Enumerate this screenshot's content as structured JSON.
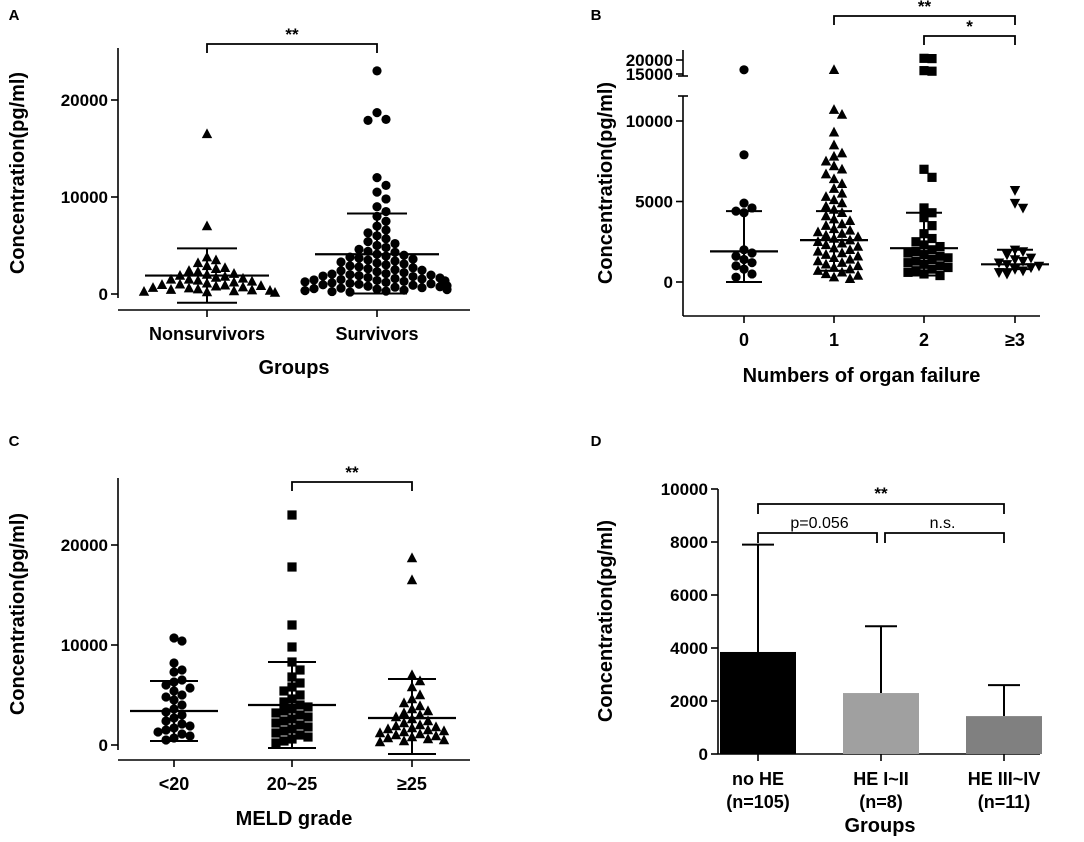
{
  "chart_data": [
    {
      "panel": "A",
      "type": "scatter",
      "xlabel": "Groups",
      "ylabel": "Concentration(pg/ml)",
      "ylim": [
        -1500,
        25000
      ],
      "yticks": [
        0,
        10000,
        20000
      ],
      "categories": [
        "Nonsurvivors",
        "Survivors"
      ],
      "series": [
        {
          "name": "Nonsurvivors",
          "marker": "triangle",
          "values": [
            16500,
            7000,
            3800,
            3500,
            3200,
            2900,
            2700,
            2600,
            2400,
            2300,
            2100,
            2000,
            1900,
            1800,
            1700,
            1600,
            1500,
            1500,
            1400,
            1300,
            1200,
            1100,
            1000,
            950,
            900,
            850,
            800,
            700,
            650,
            600,
            500,
            450,
            400,
            350,
            300,
            250,
            200,
            150
          ],
          "mean": 1900,
          "sd_low": -900,
          "sd_high": 4700
        },
        {
          "name": "Survivors",
          "marker": "circle",
          "values": [
            23000,
            18700,
            18000,
            17900,
            12000,
            11200,
            10500,
            9800,
            9000,
            8500,
            8000,
            7500,
            7000,
            6600,
            6300,
            6000,
            5700,
            5400,
            5200,
            5000,
            4800,
            4600,
            4400,
            4300,
            4100,
            4000,
            3900,
            3800,
            3700,
            3600,
            3500,
            3400,
            3300,
            3200,
            3100,
            3000,
            2900,
            2800,
            2700,
            2600,
            2500,
            2450,
            2400,
            2300,
            2200,
            2100,
            2050,
            2000,
            1950,
            1900,
            1850,
            1800,
            1700,
            1650,
            1600,
            1550,
            1500,
            1450,
            1400,
            1350,
            1300,
            1250,
            1200,
            1150,
            1100,
            1050,
            1000,
            950,
            900,
            850,
            800,
            750,
            700,
            650,
            600,
            550,
            500,
            450,
            400,
            350,
            300,
            250,
            200
          ],
          "mean": 4100,
          "sd_low": 50,
          "sd_high": 8300
        }
      ],
      "significance": [
        {
          "from": "Nonsurvivors",
          "to": "Survivors",
          "label": "**",
          "y": 25000
        }
      ]
    },
    {
      "panel": "B",
      "type": "scatter",
      "xlabel": "Numbers of organ failure",
      "ylabel": "Concentration(pg/ml)",
      "ylim": [
        -2000,
        21000
      ],
      "yticks": [
        0,
        5000,
        10000,
        15000,
        20000
      ],
      "axis_break": [
        12500,
        15000
      ],
      "categories": [
        "0",
        "1",
        "2",
        "≥3"
      ],
      "series": [
        {
          "name": "0",
          "marker": "circle",
          "values": [
            16500,
            7900,
            4900,
            4600,
            4400,
            4300,
            2000,
            1800,
            1600,
            1400,
            1200,
            1000,
            800,
            500,
            300
          ],
          "mean": 1900,
          "sd_low": 0,
          "sd_high": 4400
        },
        {
          "name": "1",
          "marker": "triangle",
          "values": [
            16500,
            10700,
            10400,
            9300,
            8500,
            8000,
            7800,
            7500,
            7200,
            7000,
            6700,
            6400,
            6100,
            5800,
            5500,
            5300,
            5100,
            4900,
            4700,
            4500,
            4300,
            4100,
            3900,
            3800,
            3600,
            3500,
            3300,
            3200,
            3100,
            3000,
            2900,
            2800,
            2700,
            2600,
            2500,
            2400,
            2300,
            2200,
            2100,
            2000,
            1900,
            1800,
            1700,
            1600,
            1500,
            1400,
            1300,
            1200,
            1100,
            1000,
            900,
            800,
            700,
            600,
            500,
            400,
            300,
            200
          ],
          "mean": 2600,
          "sd_low": 700,
          "sd_high": 4400
        },
        {
          "name": "2",
          "marker": "square",
          "values": [
            20600,
            20500,
            16200,
            16000,
            7000,
            6500,
            4600,
            4300,
            4000,
            3500,
            3000,
            2700,
            2500,
            2300,
            2200,
            2000,
            1900,
            1800,
            1700,
            1600,
            1500,
            1400,
            1300,
            1200,
            1100,
            1000,
            900,
            800,
            700,
            600,
            500,
            400
          ],
          "mean": 2100,
          "sd_low": 400,
          "sd_high": 4300
        },
        {
          "name": "≥3",
          "marker": "triangle-down",
          "values": [
            5700,
            4900,
            4600,
            2000,
            1900,
            1700,
            1500,
            1400,
            1300,
            1200,
            1100,
            1000,
            900,
            800,
            700,
            600,
            500
          ],
          "mean": 1100,
          "sd_low": 800,
          "sd_high": 2000
        }
      ],
      "significance": [
        {
          "from": "1",
          "to": "≥3",
          "label": "**",
          "y": 20800
        },
        {
          "from": "2",
          "to": "≥3",
          "label": "*",
          "y": 19300
        }
      ]
    },
    {
      "panel": "C",
      "type": "scatter",
      "xlabel": "MELD grade",
      "ylabel": "Concentration(pg/ml)",
      "ylim": [
        -1500,
        25000
      ],
      "yticks": [
        0,
        10000,
        20000
      ],
      "categories": [
        "<20",
        "20~25",
        "≥25"
      ],
      "series": [
        {
          "name": "<20",
          "marker": "circle",
          "values": [
            10700,
            10400,
            8200,
            7500,
            7300,
            6500,
            6300,
            6000,
            5700,
            5400,
            5000,
            4800,
            4500,
            4000,
            3600,
            3300,
            3000,
            2700,
            2400,
            2100,
            1900,
            1700,
            1500,
            1300,
            1100,
            900,
            700,
            500
          ],
          "mean": 3400,
          "sd_low": 400,
          "sd_high": 6400
        },
        {
          "name": "20~25",
          "marker": "square",
          "values": [
            23000,
            17800,
            12000,
            9800,
            8300,
            7500,
            6800,
            6200,
            5800,
            5400,
            5000,
            4600,
            4300,
            4000,
            3800,
            3600,
            3400,
            3200,
            3000,
            2800,
            2600,
            2400,
            2200,
            2000,
            1800,
            1600,
            1400,
            1200,
            1000,
            800,
            600,
            400,
            200
          ],
          "mean": 4000,
          "sd_low": -300,
          "sd_high": 8300
        },
        {
          "name": "≥25",
          "marker": "triangle",
          "values": [
            18700,
            16500,
            7000,
            6400,
            5800,
            5000,
            4600,
            4200,
            3900,
            3600,
            3400,
            3200,
            3000,
            2800,
            2600,
            2400,
            2200,
            2000,
            1900,
            1800,
            1700,
            1600,
            1500,
            1400,
            1300,
            1200,
            1100,
            1000,
            900,
            800,
            700,
            600,
            500,
            400,
            300
          ],
          "mean": 2700,
          "sd_low": -900,
          "sd_high": 6600
        }
      ],
      "significance": [
        {
          "from": "20~25",
          "to": "≥25",
          "label": "**",
          "y": 26000
        }
      ]
    },
    {
      "panel": "D",
      "type": "bar",
      "xlabel": "Groups",
      "ylabel": "Concentration(pg/ml)",
      "ylim": [
        0,
        10000
      ],
      "yticks": [
        0,
        2000,
        4000,
        6000,
        8000,
        10000
      ],
      "categories": [
        "no HE",
        "HE I~II",
        "HE III~IV"
      ],
      "category_notes": [
        "(n=105)",
        "(n=8)",
        "(n=11)"
      ],
      "values": [
        3850,
        2300,
        1430
      ],
      "error_high": [
        7900,
        4820,
        2600
      ],
      "colors": [
        "#000000",
        "#a0a0a0",
        "#808080"
      ],
      "significance": [
        {
          "from": "no HE",
          "to": "HE III~IV",
          "label": "**",
          "y": 9450
        },
        {
          "from": "no HE",
          "to": "HE I~II",
          "label": "p=0.056",
          "y": 8450
        },
        {
          "from": "HE I~II",
          "to": "HE III~IV",
          "label": "n.s.",
          "y": 8450
        }
      ]
    }
  ]
}
